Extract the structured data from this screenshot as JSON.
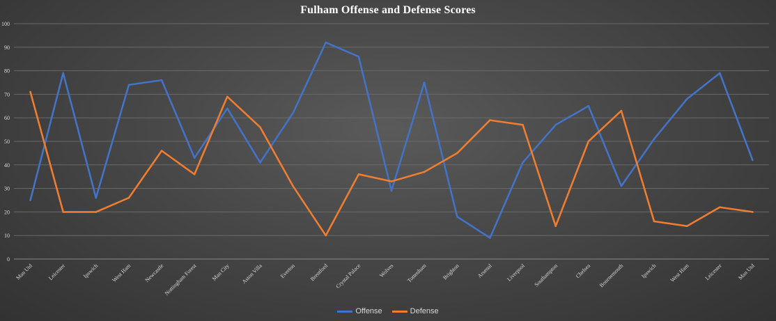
{
  "chart_data": {
    "type": "line",
    "title": "Fulham Offense and Defense Scores",
    "xlabel": "",
    "ylabel": "",
    "ylim": [
      0,
      100
    ],
    "yticks": [
      0,
      10,
      20,
      30,
      40,
      50,
      60,
      70,
      80,
      90,
      100
    ],
    "grid": true,
    "legend": "bottom-center",
    "categories": [
      "Man Utd",
      "Leicester",
      "Ipswich",
      "West Ham",
      "Newcastle",
      "Nottingham Forest",
      "Man City",
      "Aston Villa",
      "Everton",
      "Brentford",
      "Crystal Palace",
      "Wolves",
      "Tottenham",
      "Brighton",
      "Arsenal",
      "Liverpool",
      "Southampton",
      "Chelsea",
      "Bournemouth",
      "Ipswich",
      "West Ham",
      "Leicester",
      "Man Utd"
    ],
    "series": [
      {
        "name": "Offense",
        "color": "#4472c4",
        "values": [
          25,
          79,
          26,
          74,
          76,
          43,
          64,
          41,
          62,
          92,
          86,
          29,
          75,
          18,
          9,
          41,
          57,
          65,
          31,
          51,
          68,
          79,
          42
        ]
      },
      {
        "name": "Defense",
        "color": "#ed7d31",
        "values": [
          71,
          20,
          20,
          26,
          46,
          36,
          69,
          56,
          31,
          10,
          36,
          33,
          37,
          45,
          59,
          57,
          14,
          50,
          63,
          16,
          14,
          22,
          20
        ]
      }
    ]
  }
}
